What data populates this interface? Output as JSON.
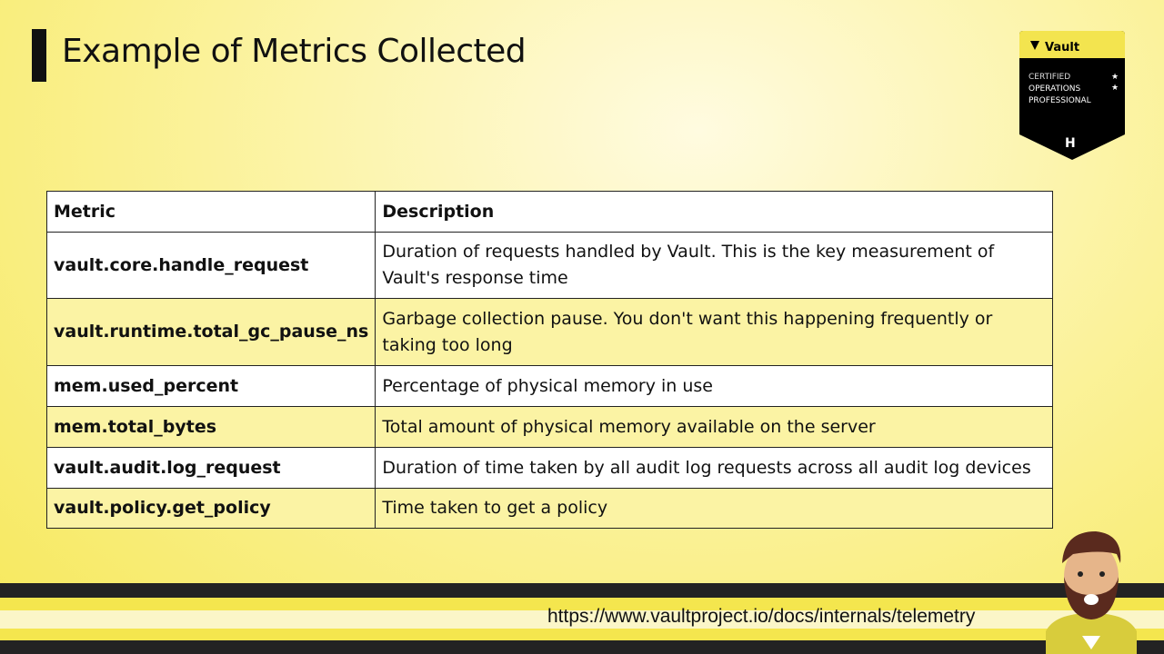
{
  "title": "Example of Metrics Collected",
  "badge": {
    "brand": "Vault",
    "line1": "CERTIFIED",
    "line2": "OPERATIONS",
    "line3": "PROFESSIONAL"
  },
  "table": {
    "headers": [
      "Metric",
      "Description"
    ],
    "rows": [
      {
        "metric": "vault.core.handle_request",
        "description": "Duration of requests handled by Vault. This is the key measurement of Vault's response time"
      },
      {
        "metric": "vault.runtime.total_gc_pause_ns",
        "description": "Garbage collection pause. You don't want this happening frequently or taking too long"
      },
      {
        "metric": "mem.used_percent",
        "description": "Percentage of physical memory in use"
      },
      {
        "metric": "mem.total_bytes",
        "description": "Total amount of physical memory available on the server"
      },
      {
        "metric": "vault.audit.log_request",
        "description": "Duration of time taken by all audit log requests across all audit log devices"
      },
      {
        "metric": "vault.policy.get_policy",
        "description": "Time taken to get a policy"
      }
    ]
  },
  "footer": {
    "url": "https://www.vaultproject.io/docs/internals/telemetry"
  },
  "colors": {
    "accent": "#f5e64f",
    "dark": "#222222"
  }
}
